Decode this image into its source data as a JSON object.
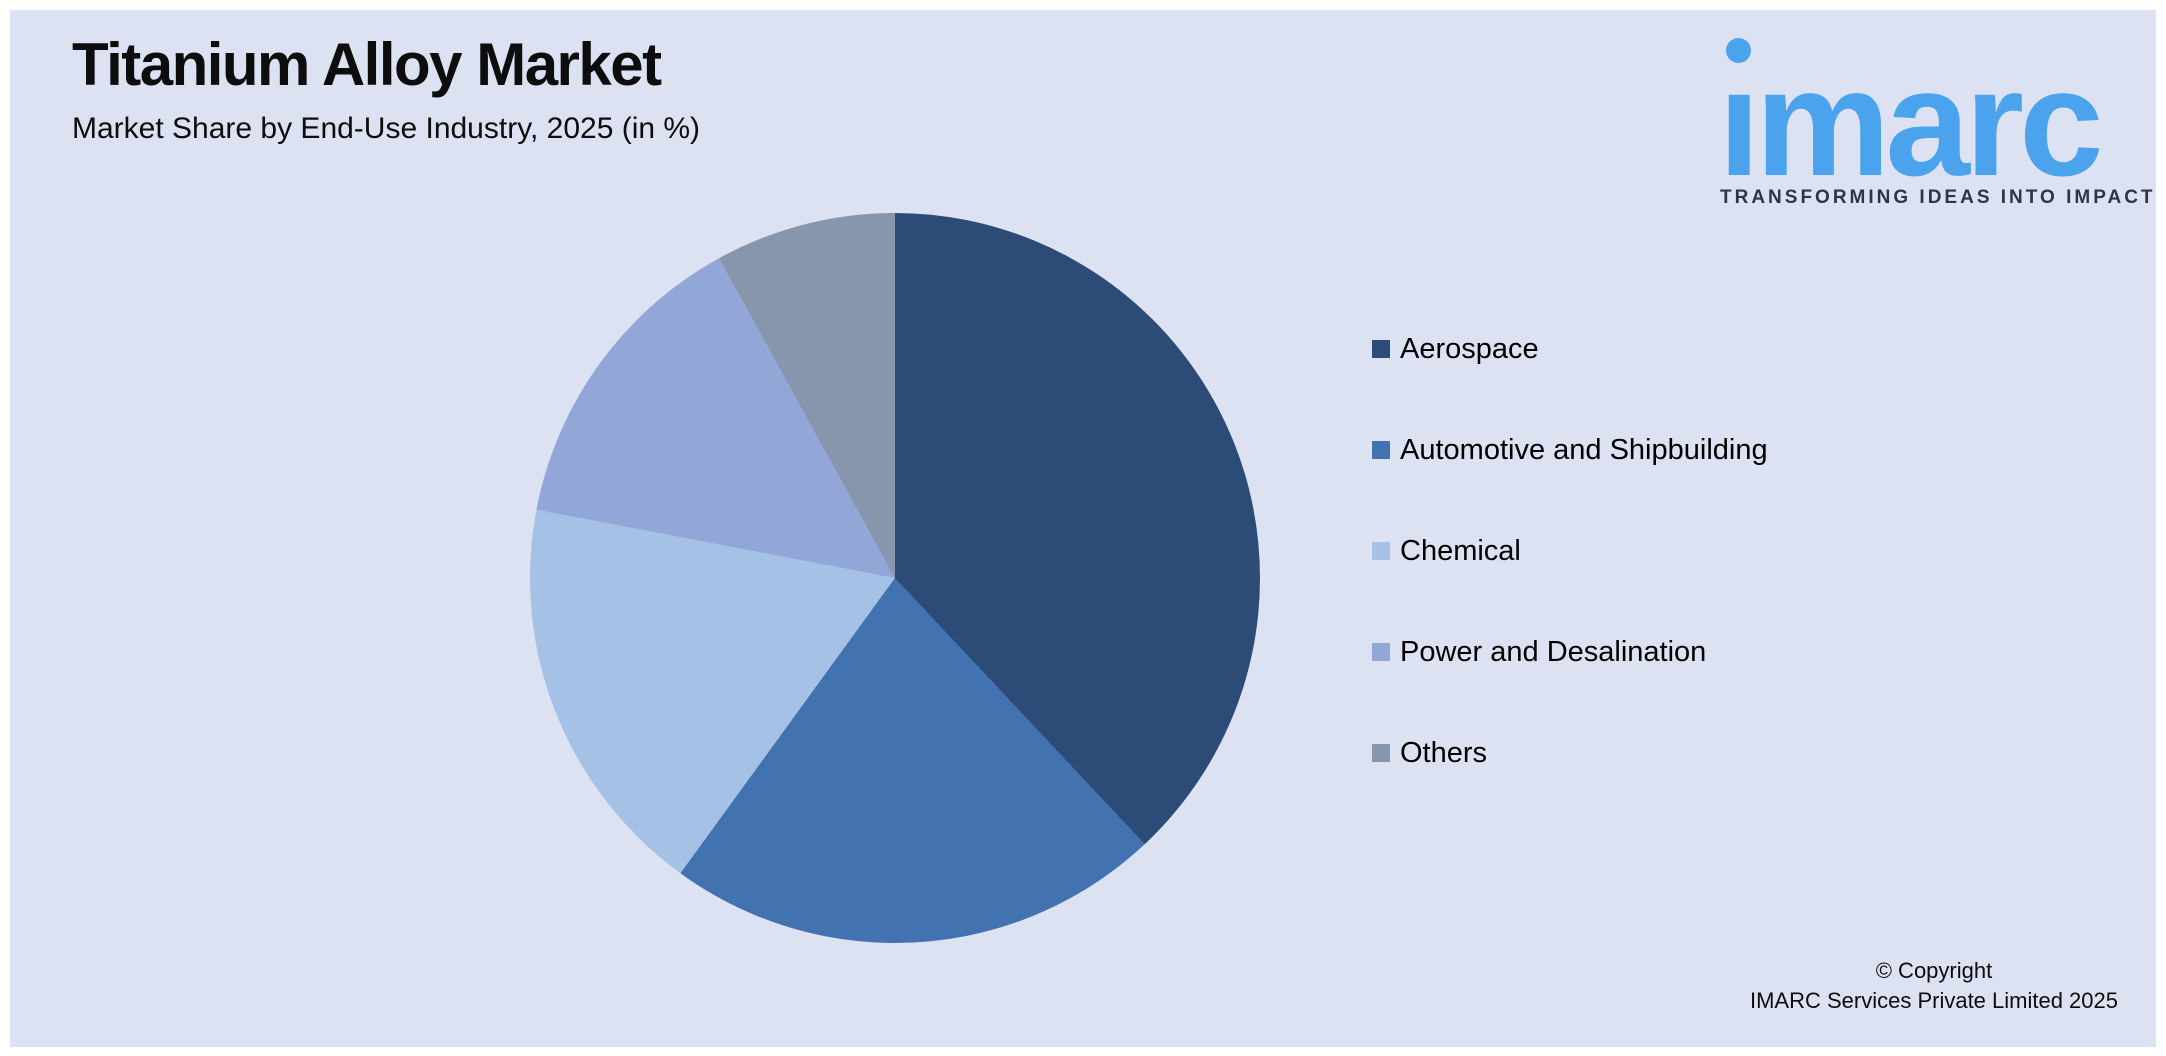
{
  "header": {
    "title": "Titanium Alloy Market",
    "subtitle": "Market Share by End-Use Industry, 2025 (in %)"
  },
  "logo": {
    "wordmark": "imarc",
    "wordmark_glyphs": "ımarc",
    "tagline": "TRANSFORMING IDEAS INTO IMPACT",
    "brand_color": "#4BA3EE",
    "tagline_color": "#2F3547"
  },
  "chart_data": {
    "type": "pie",
    "title": "Titanium Alloy Market",
    "subtitle": "Market Share by End-Use Industry, 2025 (in %)",
    "unit": "%",
    "start_angle_deg": 0,
    "direction": "clockwise",
    "labels_shown_on_chart": false,
    "legend_position": "right",
    "slices": [
      {
        "label": "Aerospace",
        "value": 38,
        "color": "#2C4B76"
      },
      {
        "label": "Automotive and Shipbuilding",
        "value": 22,
        "color": "#4273B0"
      },
      {
        "label": "Chemical",
        "value": 18,
        "color": "#A5C2E6"
      },
      {
        "label": "Power and Desalination",
        "value": 14,
        "color": "#93A6D8"
      },
      {
        "label": "Others",
        "value": 8,
        "color": "#8795AD"
      }
    ]
  },
  "footer": {
    "copyright_line1": "© Copyright",
    "copyright_line2": "IMARC Services Private Limited 2025"
  },
  "colors": {
    "page_background": "#FFFFFF",
    "panel_background": "#DCE2F2",
    "text": "#0D0D0D"
  }
}
